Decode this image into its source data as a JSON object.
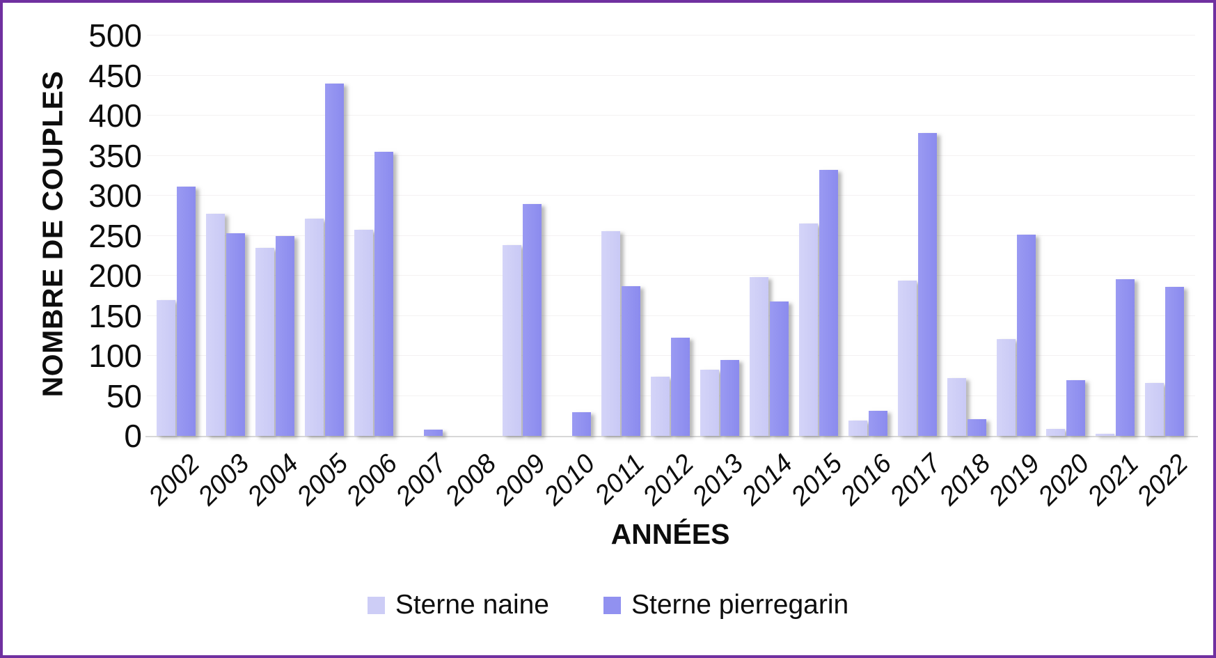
{
  "frame": {
    "border_color": "#7030A0"
  },
  "chart_data": {
    "type": "bar",
    "title": "",
    "xlabel": "ANNÉES",
    "ylabel": "NOMBRE DE COUPLES",
    "ylim": [
      0,
      500
    ],
    "ytick_step": 50,
    "yticks": [
      0,
      50,
      100,
      150,
      200,
      250,
      300,
      350,
      400,
      450,
      500
    ],
    "grid": true,
    "legend_position": "bottom",
    "categories": [
      "2002",
      "2003",
      "2004",
      "2005",
      "2006",
      "2007",
      "2008",
      "2009",
      "2010",
      "2011",
      "2012",
      "2013",
      "2014",
      "2015",
      "2016",
      "2017",
      "2018",
      "2019",
      "2020",
      "2021",
      "2022"
    ],
    "series": [
      {
        "name": "Sterne naine",
        "color": "#CDCDF6",
        "values": [
          170,
          277,
          235,
          271,
          257,
          0,
          0,
          238,
          0,
          256,
          74,
          83,
          198,
          265,
          19,
          194,
          72,
          121,
          9,
          3,
          66
        ]
      },
      {
        "name": "Sterne pierregarin",
        "color": "#9191F0",
        "values": [
          311,
          253,
          250,
          440,
          355,
          8,
          0,
          290,
          30,
          187,
          123,
          95,
          168,
          332,
          31,
          378,
          21,
          251,
          70,
          196,
          186
        ]
      }
    ]
  }
}
